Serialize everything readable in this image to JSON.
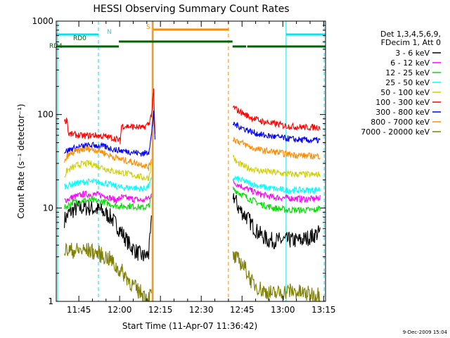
{
  "chart_data": {
    "type": "line",
    "title": "HESSI Observing Summary Count Rates",
    "xlabel": "Start Time (11-Apr-07 11:36:42)",
    "ylabel": "Count Rate (s⁻¹ detector⁻¹)",
    "yscale": "log",
    "ylim": [
      1,
      1000
    ],
    "xlim_min": [
      0,
      99
    ],
    "x_ticks_min": [
      8.3,
      23.3,
      38.3,
      53.3,
      68.3,
      83.3,
      98.3
    ],
    "x_tick_labels": [
      "11:45",
      "12:00",
      "12:15",
      "12:30",
      "12:45",
      "13:00",
      "13:15"
    ],
    "y_ticks": [
      1,
      10,
      100,
      1000
    ],
    "y_tick_labels": [
      "1",
      "10",
      "100",
      "1000"
    ],
    "legend_header": [
      "Det 1,3,4,5,6,9,",
      "FDecim 1, Att 0"
    ],
    "legend_placement": "right",
    "date_stamp": "9-Dec-2009 15:04",
    "flags": [
      {
        "label": "N",
        "color": "#00e5ee",
        "segments": [
          [
            0,
            15.5
          ],
          [
            84.5,
            99
          ]
        ]
      },
      {
        "label": "RD0",
        "color": "#006400",
        "segments": []
      },
      {
        "label": "RD4",
        "color": "#006400",
        "segments": [
          [
            0,
            23
          ],
          [
            23,
            64.8
          ],
          [
            64.8,
            69.8
          ],
          [
            70.2,
            99
          ]
        ]
      },
      {
        "label": "S",
        "color": "#ff8c00",
        "segments": [
          [
            35.5,
            63.3
          ]
        ]
      }
    ],
    "series": [
      {
        "name": "3 - 6 keV",
        "color": "#000000",
        "points": [
          [
            3,
            7.5
          ],
          [
            5,
            9
          ],
          [
            8,
            10
          ],
          [
            12,
            10
          ],
          [
            16,
            9.5
          ],
          [
            20,
            8
          ],
          [
            24,
            5.5
          ],
          [
            27,
            4
          ],
          [
            30,
            3.3
          ],
          [
            32,
            3
          ],
          [
            34,
            3.2
          ],
          [
            35,
            7
          ],
          [
            65,
            14
          ],
          [
            67,
            10
          ],
          [
            70,
            8
          ],
          [
            74,
            5.5
          ],
          [
            78,
            4.5
          ],
          [
            82,
            4.5
          ],
          [
            86,
            4.5
          ],
          [
            90,
            4.5
          ],
          [
            94,
            5
          ],
          [
            97,
            5.5
          ]
        ]
      },
      {
        "name": "6 - 12 keV",
        "color": "#ff00ff",
        "points": [
          [
            3,
            12
          ],
          [
            6,
            13
          ],
          [
            10,
            14
          ],
          [
            14,
            14
          ],
          [
            18,
            13.5
          ],
          [
            22,
            12
          ],
          [
            24,
            13
          ],
          [
            28,
            12.5
          ],
          [
            32,
            12
          ],
          [
            34,
            13
          ],
          [
            35,
            14
          ],
          [
            65,
            19
          ],
          [
            70,
            16
          ],
          [
            75,
            14
          ],
          [
            80,
            13
          ],
          [
            85,
            12.8
          ],
          [
            90,
            12.5
          ],
          [
            95,
            12.5
          ],
          [
            97,
            13
          ]
        ]
      },
      {
        "name": "12 - 25 keV",
        "color": "#00e000",
        "points": [
          [
            3,
            10
          ],
          [
            6,
            11.5
          ],
          [
            10,
            12
          ],
          [
            14,
            12
          ],
          [
            18,
            11.5
          ],
          [
            22,
            10.5
          ],
          [
            24,
            10.5
          ],
          [
            28,
            10.5
          ],
          [
            32,
            10
          ],
          [
            34,
            10.5
          ],
          [
            35,
            13
          ],
          [
            65,
            16
          ],
          [
            70,
            13
          ],
          [
            75,
            11
          ],
          [
            80,
            10
          ],
          [
            85,
            9.5
          ],
          [
            90,
            9.5
          ],
          [
            95,
            9.5
          ],
          [
            97,
            10
          ]
        ]
      },
      {
        "name": "25 - 50 keV",
        "color": "#00ffff",
        "points": [
          [
            3,
            17
          ],
          [
            6,
            18
          ],
          [
            10,
            19
          ],
          [
            14,
            19
          ],
          [
            18,
            18.5
          ],
          [
            22,
            17
          ],
          [
            24,
            16.5
          ],
          [
            28,
            16.5
          ],
          [
            32,
            16
          ],
          [
            34,
            17
          ],
          [
            35,
            20
          ],
          [
            65,
            21
          ],
          [
            70,
            19
          ],
          [
            75,
            17
          ],
          [
            80,
            16
          ],
          [
            85,
            15.5
          ],
          [
            90,
            15.5
          ],
          [
            95,
            15.5
          ],
          [
            97,
            16
          ]
        ]
      },
      {
        "name": "50 - 100 keV",
        "color": "#d0d000",
        "points": [
          [
            3,
            22
          ],
          [
            4,
            25
          ],
          [
            8,
            29
          ],
          [
            12,
            30
          ],
          [
            16,
            28
          ],
          [
            20,
            25
          ],
          [
            24,
            24
          ],
          [
            27,
            23
          ],
          [
            30,
            22
          ],
          [
            32,
            21
          ],
          [
            34,
            21
          ],
          [
            35,
            30
          ],
          [
            65,
            37
          ],
          [
            66,
            31
          ],
          [
            70,
            27
          ],
          [
            75,
            25
          ],
          [
            80,
            24
          ],
          [
            85,
            23
          ],
          [
            90,
            23
          ],
          [
            95,
            22.5
          ],
          [
            97,
            23
          ]
        ]
      },
      {
        "name": "100 - 300 keV",
        "color": "#ff0000",
        "points": [
          [
            3,
            83
          ],
          [
            4,
            88
          ],
          [
            4.5,
            62
          ],
          [
            10,
            59
          ],
          [
            14,
            60
          ],
          [
            18,
            58
          ],
          [
            22,
            55
          ],
          [
            23.5,
            52
          ],
          [
            24,
            76
          ],
          [
            28,
            74
          ],
          [
            32,
            72
          ],
          [
            34,
            80
          ],
          [
            35,
            100
          ],
          [
            35.8,
            180
          ],
          [
            36.3,
            60
          ],
          [
            65,
            120
          ],
          [
            68,
            105
          ],
          [
            72,
            92
          ],
          [
            76,
            84
          ],
          [
            80,
            80
          ],
          [
            84,
            76
          ],
          [
            88,
            74
          ],
          [
            92,
            73
          ],
          [
            97,
            73
          ]
        ]
      },
      {
        "name": "300 - 800 keV",
        "color": "#0000ff",
        "points": [
          [
            3,
            40
          ],
          [
            6,
            43
          ],
          [
            10,
            46
          ],
          [
            14,
            47
          ],
          [
            18,
            45
          ],
          [
            22,
            42
          ],
          [
            24,
            41
          ],
          [
            27,
            40
          ],
          [
            30,
            39
          ],
          [
            32,
            38
          ],
          [
            34,
            40
          ],
          [
            35,
            60
          ],
          [
            35.8,
            110
          ],
          [
            36.3,
            50
          ],
          [
            65,
            80
          ],
          [
            68,
            73
          ],
          [
            72,
            65
          ],
          [
            76,
            60
          ],
          [
            80,
            58
          ],
          [
            84,
            56
          ],
          [
            88,
            54
          ],
          [
            92,
            53
          ],
          [
            97,
            53
          ]
        ]
      },
      {
        "name": "800 - 7000 keV",
        "color": "#ff8c00",
        "points": [
          [
            3,
            30
          ],
          [
            4,
            36
          ],
          [
            8,
            41
          ],
          [
            12,
            43
          ],
          [
            16,
            41
          ],
          [
            20,
            36
          ],
          [
            24,
            33
          ],
          [
            28,
            31
          ],
          [
            32,
            29
          ],
          [
            34,
            27
          ],
          [
            35,
            34
          ],
          [
            65,
            55
          ],
          [
            68,
            50
          ],
          [
            72,
            44
          ],
          [
            76,
            41
          ],
          [
            80,
            40
          ],
          [
            84,
            38
          ],
          [
            88,
            37
          ],
          [
            92,
            36
          ],
          [
            97,
            36
          ]
        ]
      },
      {
        "name": "7000 - 20000 keV",
        "color": "#808000",
        "points": [
          [
            3,
            3.5
          ],
          [
            8,
            3.5
          ],
          [
            12,
            3.5
          ],
          [
            16,
            3.2
          ],
          [
            20,
            2.8
          ],
          [
            22,
            2.3
          ],
          [
            24,
            2.1
          ],
          [
            26,
            1.8
          ],
          [
            28,
            1.5
          ],
          [
            30,
            1.3
          ],
          [
            32,
            1.2
          ],
          [
            34,
            1.1
          ],
          [
            35,
            1.2
          ],
          [
            65,
            3
          ],
          [
            68,
            2.6
          ],
          [
            70,
            2.1
          ],
          [
            72,
            1.6
          ],
          [
            76,
            1.3
          ],
          [
            80,
            1.2
          ],
          [
            86,
            1.3
          ],
          [
            92,
            1.2
          ],
          [
            97,
            1.2
          ]
        ]
      }
    ]
  }
}
